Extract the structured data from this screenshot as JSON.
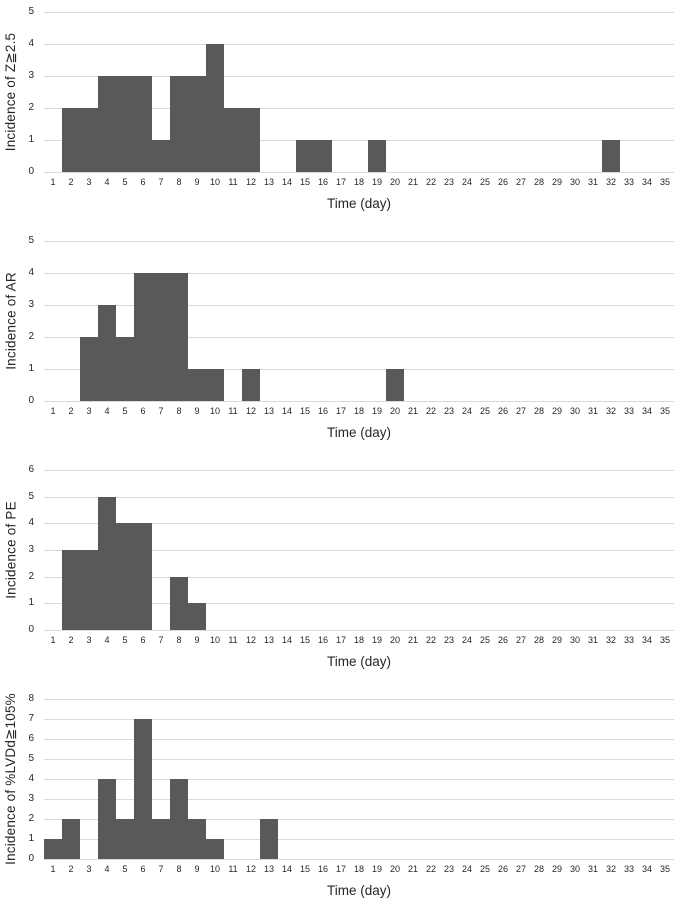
{
  "figure": {
    "x_axis_title": "Time (day)",
    "bar_color": "#595959",
    "gridline_color": "#d9d9d9",
    "text_color": "#262626",
    "background": "#ffffff"
  },
  "chart_data": [
    {
      "type": "bar",
      "title": "",
      "ylabel": "Incidence of Z≧2.5",
      "xlabel": "Time (day)",
      "x": [
        1,
        2,
        3,
        4,
        5,
        6,
        7,
        8,
        9,
        10,
        11,
        12,
        13,
        14,
        15,
        16,
        17,
        18,
        19,
        20,
        21,
        22,
        23,
        24,
        25,
        26,
        27,
        28,
        29,
        30,
        31,
        32,
        33,
        34,
        35
      ],
      "values": [
        0,
        2,
        2,
        3,
        3,
        3,
        1,
        3,
        3,
        4,
        2,
        2,
        0,
        0,
        1,
        1,
        0,
        0,
        1,
        0,
        0,
        0,
        0,
        0,
        0,
        0,
        0,
        0,
        0,
        0,
        0,
        1,
        0,
        0,
        0
      ],
      "ylim": [
        0,
        5
      ],
      "yticks": [
        0,
        1,
        2,
        3,
        4,
        5
      ],
      "grid": true,
      "legend": false
    },
    {
      "type": "bar",
      "title": "",
      "ylabel": "Incidence of AR",
      "xlabel": "Time (day)",
      "x": [
        1,
        2,
        3,
        4,
        5,
        6,
        7,
        8,
        9,
        10,
        11,
        12,
        13,
        14,
        15,
        16,
        17,
        18,
        19,
        20,
        21,
        22,
        23,
        24,
        25,
        26,
        27,
        28,
        29,
        30,
        31,
        32,
        33,
        34,
        35
      ],
      "values": [
        0,
        0,
        2,
        3,
        2,
        4,
        4,
        4,
        1,
        1,
        0,
        1,
        0,
        0,
        0,
        0,
        0,
        0,
        0,
        1,
        0,
        0,
        0,
        0,
        0,
        0,
        0,
        0,
        0,
        0,
        0,
        0,
        0,
        0,
        0
      ],
      "ylim": [
        0,
        5
      ],
      "yticks": [
        0,
        1,
        2,
        3,
        4,
        5
      ],
      "grid": true,
      "legend": false
    },
    {
      "type": "bar",
      "title": "",
      "ylabel": "Incidence of PE",
      "xlabel": "Time (day)",
      "x": [
        1,
        2,
        3,
        4,
        5,
        6,
        7,
        8,
        9,
        10,
        11,
        12,
        13,
        14,
        15,
        16,
        17,
        18,
        19,
        20,
        21,
        22,
        23,
        24,
        25,
        26,
        27,
        28,
        29,
        30,
        31,
        32,
        33,
        34,
        35
      ],
      "values": [
        0,
        3,
        3,
        5,
        4,
        4,
        0,
        2,
        1,
        0,
        0,
        0,
        0,
        0,
        0,
        0,
        0,
        0,
        0,
        0,
        0,
        0,
        0,
        0,
        0,
        0,
        0,
        0,
        0,
        0,
        0,
        0,
        0,
        0,
        0
      ],
      "ylim": [
        0,
        6
      ],
      "yticks": [
        0,
        1,
        2,
        3,
        4,
        5,
        6
      ],
      "grid": true,
      "legend": false
    },
    {
      "type": "bar",
      "title": "",
      "ylabel": "Incidence of %LVDd≧105%",
      "xlabel": "Time (day)",
      "x": [
        1,
        2,
        3,
        4,
        5,
        6,
        7,
        8,
        9,
        10,
        11,
        12,
        13,
        14,
        15,
        16,
        17,
        18,
        19,
        20,
        21,
        22,
        23,
        24,
        25,
        26,
        27,
        28,
        29,
        30,
        31,
        32,
        33,
        34,
        35
      ],
      "values": [
        1,
        2,
        0,
        4,
        2,
        7,
        2,
        4,
        2,
        1,
        0,
        0,
        2,
        0,
        0,
        0,
        0,
        0,
        0,
        0,
        0,
        0,
        0,
        0,
        0,
        0,
        0,
        0,
        0,
        0,
        0,
        0,
        0,
        0,
        0
      ],
      "ylim": [
        0,
        8
      ],
      "yticks": [
        0,
        1,
        2,
        3,
        4,
        5,
        6,
        7,
        8
      ],
      "grid": true,
      "legend": false
    }
  ]
}
